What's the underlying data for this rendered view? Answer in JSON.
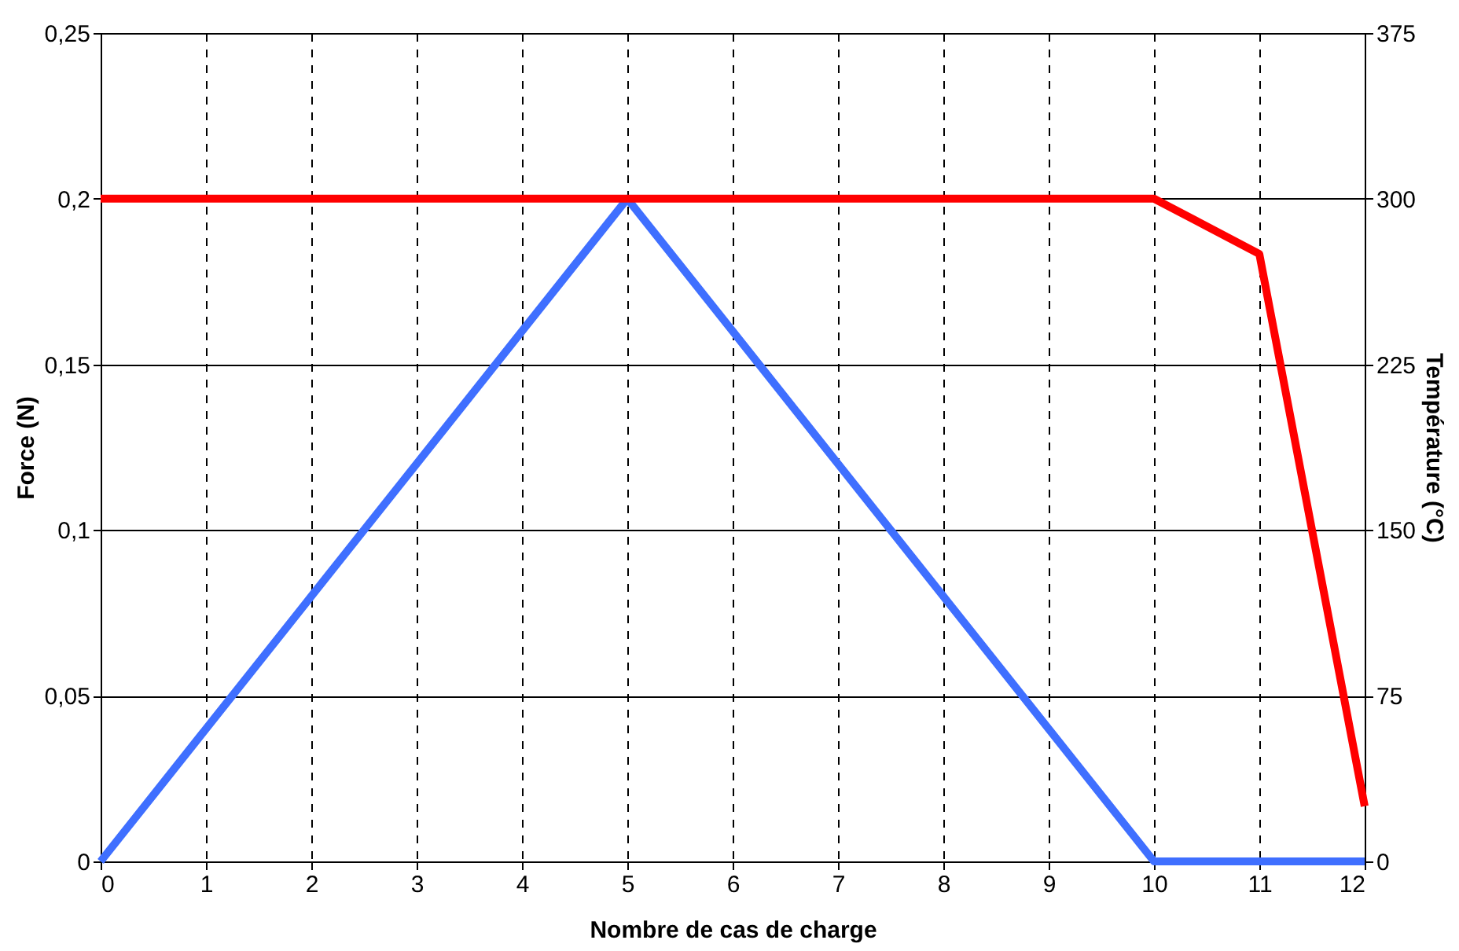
{
  "chart_data": {
    "type": "line",
    "xlabel": "Nombre de cas de charge",
    "ylabel": "Force (N)",
    "y2label": "Température (°C)",
    "x": [
      0,
      1,
      2,
      3,
      4,
      5,
      6,
      7,
      8,
      9,
      10,
      11,
      12
    ],
    "series": [
      {
        "color": "#ff0000",
        "axis": "y2",
        "values": [
          300,
          300,
          300,
          300,
          300,
          300,
          300,
          300,
          300,
          300,
          300,
          275,
          25
        ]
      },
      {
        "color": "#3f6fff",
        "axis": "y",
        "values": [
          0,
          0.04,
          0.08,
          0.12,
          0.16,
          0.2,
          0.16,
          0.12,
          0.08,
          0.04,
          0,
          0,
          0
        ]
      }
    ],
    "xlim": [
      0,
      12
    ],
    "xticks": [
      0,
      1,
      2,
      3,
      4,
      5,
      6,
      7,
      8,
      9,
      10,
      11,
      12
    ],
    "ylim": [
      0,
      0.25
    ],
    "yticks": [
      0,
      {
        "value": 0.05,
        "label": "0,05"
      },
      {
        "value": 0.1,
        "label": "0,1"
      },
      {
        "value": 0.15,
        "label": "0,15"
      },
      {
        "value": 0.2,
        "label": "0,2"
      },
      {
        "value": 0.25,
        "label": "0,25"
      }
    ],
    "y2lim": [
      0,
      375
    ],
    "y2ticks": [
      0,
      75,
      150,
      225,
      300,
      375
    ],
    "grid": true,
    "legend": false,
    "marker": "none",
    "line_style": "solid"
  }
}
